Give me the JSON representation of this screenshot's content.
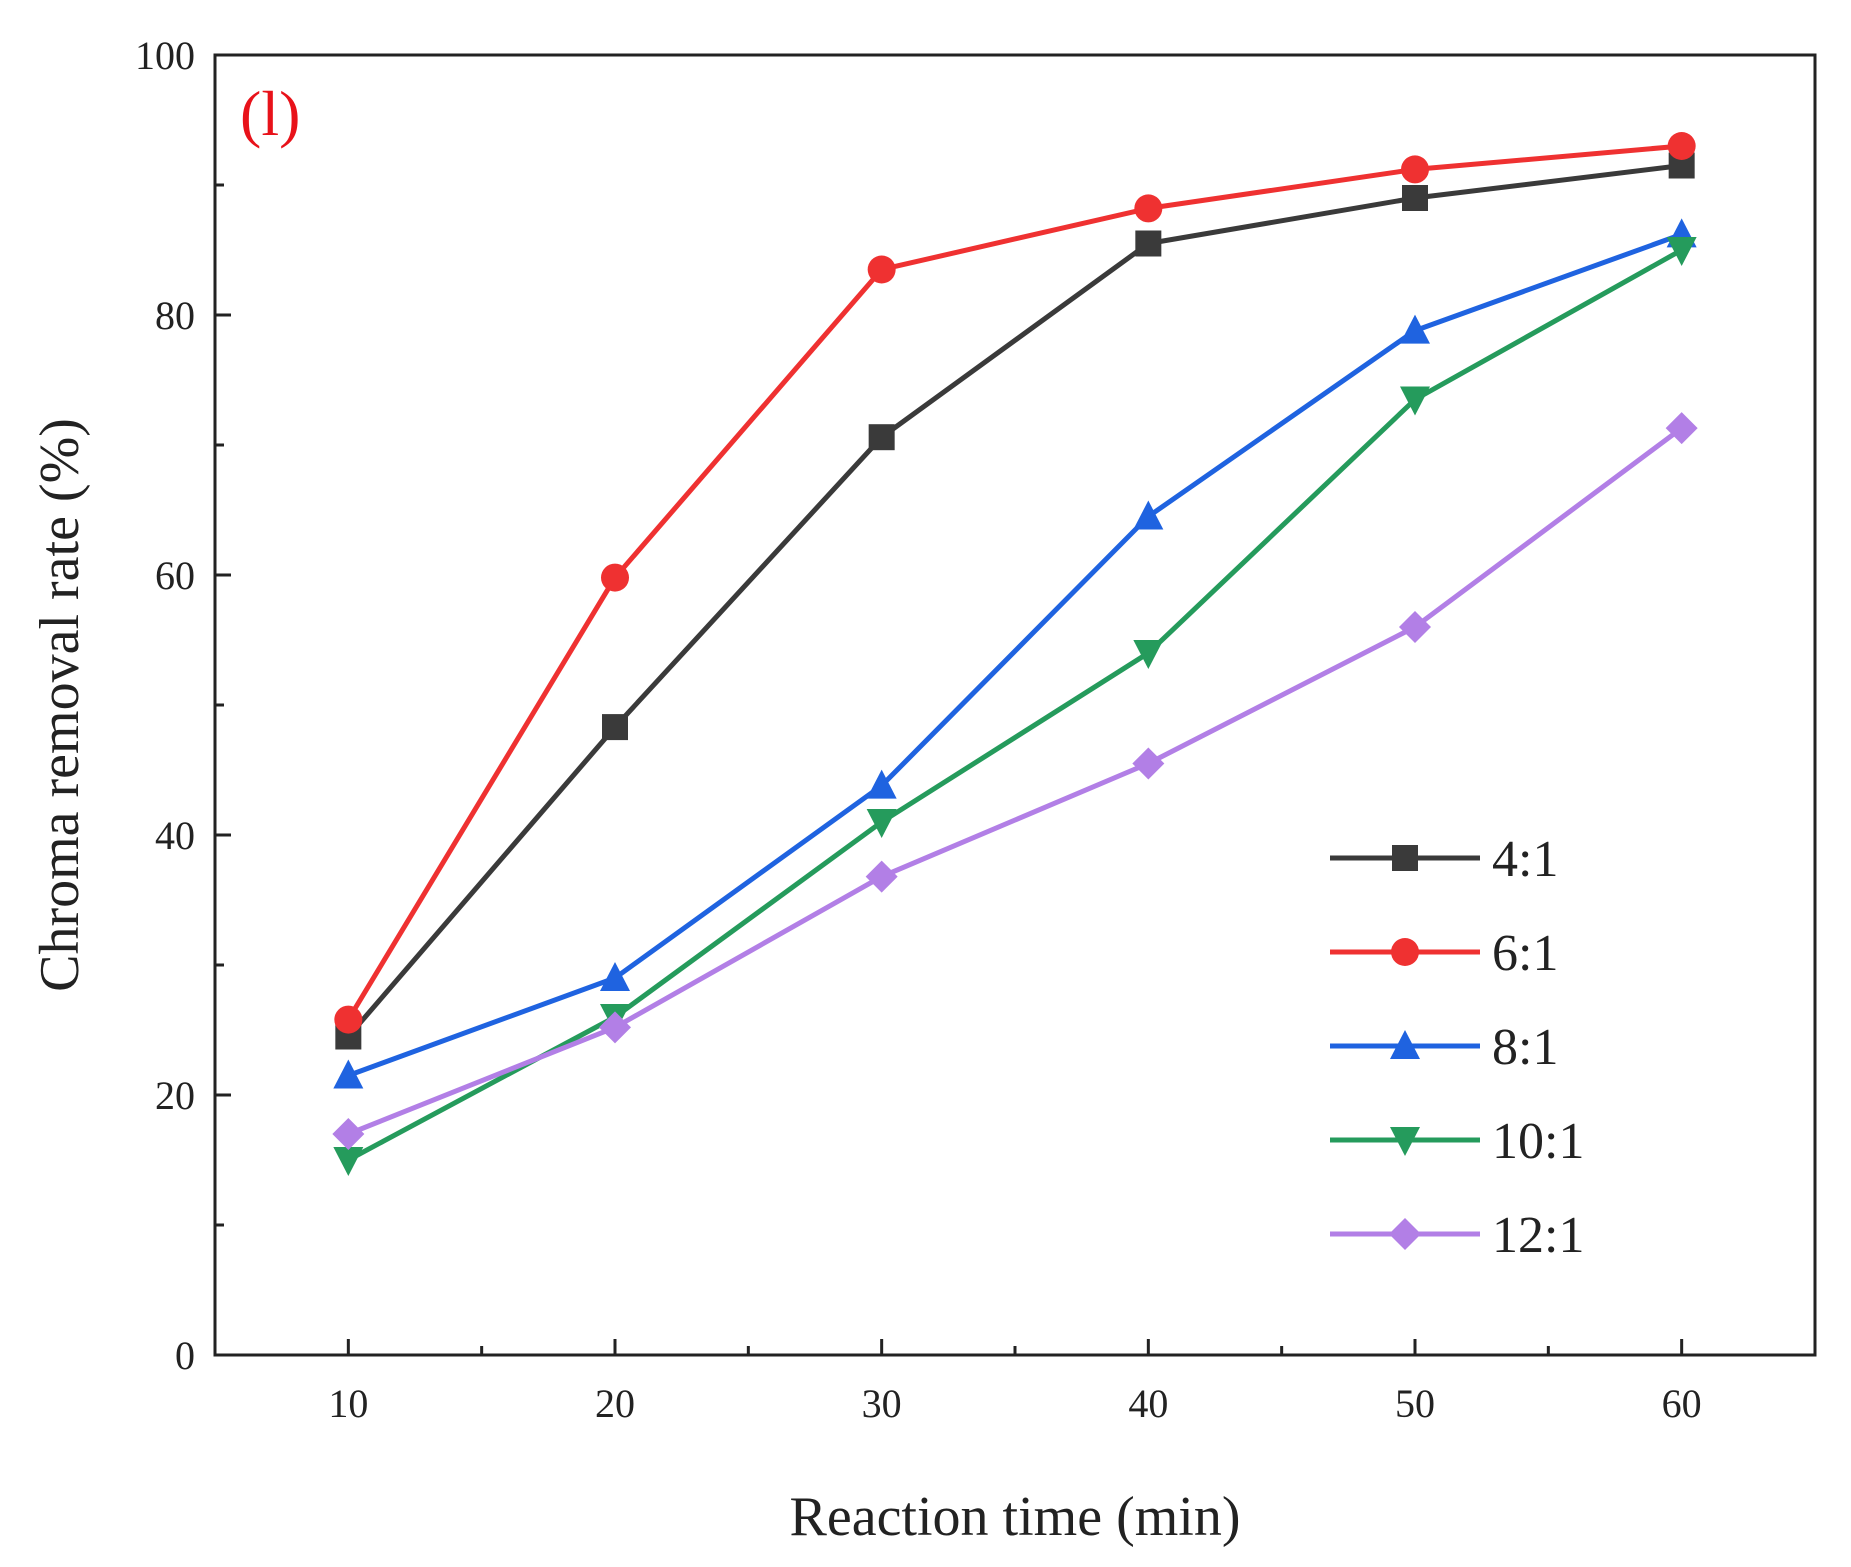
{
  "chart_data": {
    "type": "line",
    "panel_label": "(l)",
    "xlabel": "Reaction time (min)",
    "ylabel": "Chroma removal rate (%)",
    "x": [
      10,
      20,
      30,
      40,
      50,
      60
    ],
    "xlim": [
      5,
      65
    ],
    "ylim": [
      0,
      100
    ],
    "xticks": [
      "10",
      "20",
      "30",
      "40",
      "50",
      "60"
    ],
    "yticks": [
      "0",
      "20",
      "40",
      "60",
      "80",
      "100"
    ],
    "legend_position": "bottom-right",
    "series": [
      {
        "name": "4:1",
        "color": "#3a3a3a",
        "marker": "square",
        "values": [
          24.5,
          48.3,
          70.6,
          85.5,
          89.0,
          91.5
        ]
      },
      {
        "name": "6:1",
        "color": "#ef3131",
        "marker": "circle",
        "values": [
          25.8,
          59.8,
          83.5,
          88.2,
          91.2,
          93.0
        ]
      },
      {
        "name": "8:1",
        "color": "#1f63e0",
        "marker": "triangle-up",
        "values": [
          21.5,
          29.0,
          43.8,
          64.5,
          78.8,
          86.2
        ]
      },
      {
        "name": "10:1",
        "color": "#259b5c",
        "marker": "triangle-down",
        "values": [
          15.0,
          26.0,
          41.0,
          54.0,
          73.5,
          85.0
        ]
      },
      {
        "name": "12:1",
        "color": "#b27fe6",
        "marker": "diamond",
        "values": [
          17.0,
          25.2,
          36.8,
          45.5,
          56.0,
          71.3
        ]
      }
    ]
  }
}
